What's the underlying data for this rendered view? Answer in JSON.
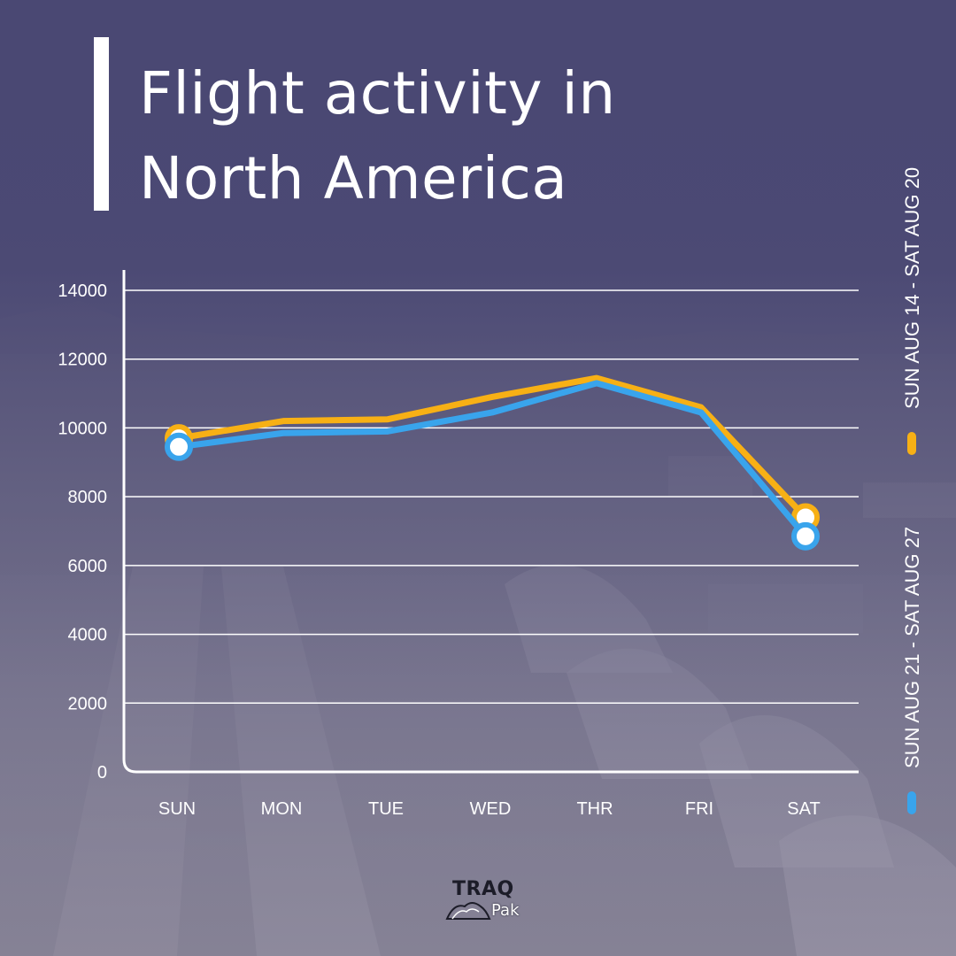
{
  "page": {
    "title": "Flight activity in North America",
    "title_lines": [
      "Flight activity in",
      "North America"
    ]
  },
  "logo": {
    "top_text": "TRAQ",
    "bottom_text": "Pak"
  },
  "colors": {
    "series_1": "#f7b015",
    "series_2": "#39a4ec",
    "grid": "#ffffff",
    "text": "#ffffff"
  },
  "chart_data": {
    "type": "line",
    "title": "Flight activity in North America",
    "xlabel": "",
    "ylabel": "",
    "categories": [
      "SUN",
      "MON",
      "TUE",
      "WED",
      "THR",
      "FRI",
      "SAT"
    ],
    "yticks": [
      "0",
      "2000",
      "4000",
      "6000",
      "8000",
      "10000",
      "12000",
      "14000"
    ],
    "ylim": [
      0,
      14000
    ],
    "grid": true,
    "legend_position": "right (vertical)",
    "series": [
      {
        "name": "SUN AUG 14 - SAT AUG 20",
        "color": "#f7b015",
        "values": [
          9700,
          10200,
          10250,
          10900,
          11450,
          10600,
          7400
        ]
      },
      {
        "name": "SUN AUG 21 - SAT AUG 27",
        "color": "#39a4ec",
        "values": [
          9450,
          9850,
          9900,
          10450,
          11300,
          10450,
          6850
        ]
      }
    ]
  }
}
